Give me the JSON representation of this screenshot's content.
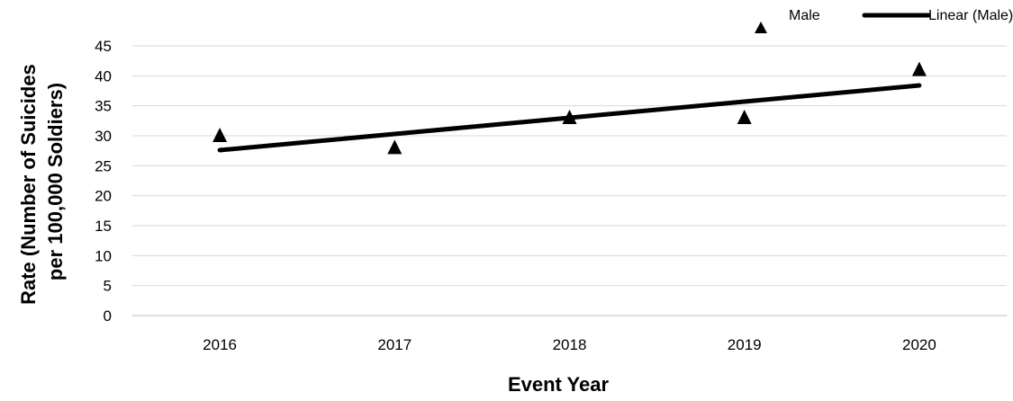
{
  "chart_data": {
    "type": "scatter",
    "title": "",
    "xlabel": "Event Year",
    "ylabel": [
      "Rate (Number of Suicides",
      "per 100,000 Soldiers)"
    ],
    "categories": [
      "2016",
      "2017",
      "2018",
      "2019",
      "2020"
    ],
    "ylim": [
      0,
      45
    ],
    "yticks": [
      "0",
      "5",
      "10",
      "15",
      "20",
      "25",
      "30",
      "35",
      "40",
      "45"
    ],
    "grid": true,
    "legend_position": "top-right",
    "series": [
      {
        "name": "Male",
        "type": "scatter",
        "marker": "triangle",
        "color": "#000000",
        "values": [
          30,
          28,
          33,
          33,
          41
        ]
      },
      {
        "name": "Linear (Male)",
        "type": "trendline",
        "color": "#000000",
        "values": [
          27.6,
          30.3,
          33.0,
          35.7,
          38.4
        ]
      }
    ]
  }
}
